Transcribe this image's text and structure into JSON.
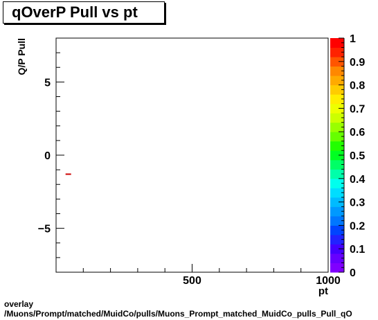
{
  "title": "qOverP Pull vs pt",
  "footer": {
    "line1": "overlay",
    "line2": "/Muons/Prompt/matched/MuidCo/pulls/Muons_Prompt_matched_MuidCo_pulls_Pull_qO"
  },
  "chart_data": {
    "type": "heatmap",
    "xlabel": "pt",
    "ylabel": "Q/P Pull",
    "xlim": [
      0,
      1000
    ],
    "ylim": [
      -8,
      8
    ],
    "x_ticks": [
      {
        "value": 500,
        "label": "500"
      },
      {
        "value": 1000,
        "label": "1000"
      }
    ],
    "y_ticks": [
      {
        "value": 5,
        "label": "5"
      },
      {
        "value": 0,
        "label": "0"
      },
      {
        "value": -5,
        "label": "−5"
      }
    ],
    "colorbar": {
      "range": [
        0,
        1
      ],
      "tick_labels": [
        "0",
        "0.1",
        "0.2",
        "0.3",
        "0.4",
        "0.5",
        "0.6",
        "0.7",
        "0.8",
        "0.9",
        "1"
      ],
      "colors": [
        "#7f00ff",
        "#6600ff",
        "#4400ff",
        "#2222ff",
        "#0044ff",
        "#0077ff",
        "#0099ff",
        "#00bbff",
        "#00ddff",
        "#00ffee",
        "#00ffaa",
        "#00ff66",
        "#00ff22",
        "#22ff00",
        "#66ff00",
        "#99ff00",
        "#ccff00",
        "#eeff00",
        "#ffee00",
        "#ffcc00",
        "#ffaa00",
        "#ff8800",
        "#ff5500",
        "#ff2200",
        "#ff0000"
      ]
    },
    "points": [
      {
        "x": 45,
        "y": -1.3,
        "color": "#cc0000"
      }
    ],
    "grid": false,
    "legend": "none"
  }
}
